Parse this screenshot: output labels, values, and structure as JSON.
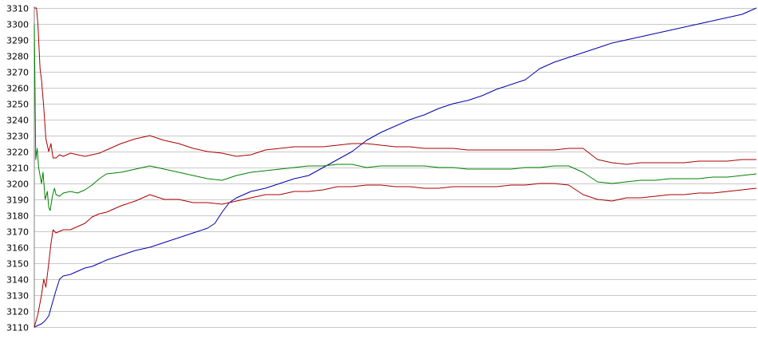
{
  "chart_data": {
    "type": "line",
    "title": "",
    "xlabel": "",
    "ylabel": "",
    "ylim": [
      3110,
      3310
    ],
    "xlim": [
      0,
      100
    ],
    "grid": true,
    "legend": "none",
    "y_ticks": [
      "3310",
      "3300",
      "3290",
      "3280",
      "3270",
      "3260",
      "3250",
      "3240",
      "3230",
      "3220",
      "3210",
      "3200",
      "3190",
      "3180",
      "3170",
      "3160",
      "3150",
      "3140",
      "3130",
      "3120",
      "3110"
    ],
    "series": [
      {
        "color": "#0000aa",
        "x": [
          0,
          0.5,
          1,
          1.5,
          2,
          2.5,
          3,
          3.5,
          4,
          5,
          6,
          7,
          8,
          9,
          10,
          12,
          14,
          16,
          18,
          20,
          22,
          24,
          25,
          26,
          27,
          28,
          29,
          30,
          32,
          34,
          36,
          38,
          40,
          42,
          44,
          46,
          48,
          50,
          52,
          54,
          56,
          58,
          60,
          62,
          64,
          66,
          68,
          70,
          72,
          74,
          76,
          78,
          80,
          82,
          84,
          86,
          88,
          90,
          92,
          94,
          96,
          98,
          99,
          100
        ],
        "y": [
          3110,
          3111,
          3112,
          3114,
          3117,
          3125,
          3133,
          3140,
          3142,
          3143,
          3145,
          3147,
          3148,
          3150,
          3152,
          3155,
          3158,
          3160,
          3163,
          3166,
          3169,
          3172,
          3175,
          3182,
          3188,
          3191,
          3193,
          3195,
          3197,
          3200,
          3203,
          3205,
          3210,
          3215,
          3220,
          3227,
          3232,
          3236,
          3240,
          3243,
          3247,
          3250,
          3252,
          3255,
          3259,
          3262,
          3265,
          3272,
          3276,
          3279,
          3282,
          3285,
          3288,
          3290,
          3292,
          3294,
          3296,
          3298,
          3300,
          3302,
          3304,
          3306,
          3308,
          3310
        ]
      },
      {
        "color": "#008000",
        "x": [
          0,
          0.2,
          0.4,
          0.6,
          0.8,
          1,
          1.2,
          1.5,
          1.8,
          2,
          2.2,
          2.5,
          2.8,
          3,
          3.5,
          4,
          5,
          6,
          7,
          8,
          9,
          10,
          12,
          14,
          16,
          18,
          20,
          22,
          24,
          26,
          28,
          30,
          32,
          34,
          36,
          38,
          40,
          42,
          44,
          46,
          48,
          50,
          52,
          54,
          56,
          58,
          60,
          62,
          64,
          66,
          68,
          70,
          72,
          74,
          76,
          78,
          80,
          82,
          84,
          86,
          88,
          90,
          92,
          94,
          96,
          98,
          100
        ],
        "y": [
          3300,
          3215,
          3222,
          3210,
          3205,
          3200,
          3207,
          3190,
          3195,
          3185,
          3183,
          3192,
          3197,
          3193,
          3192,
          3194,
          3195,
          3194,
          3196,
          3199,
          3203,
          3206,
          3207,
          3209,
          3211,
          3209,
          3207,
          3205,
          3203,
          3202,
          3205,
          3207,
          3208,
          3209,
          3210,
          3211,
          3211,
          3212,
          3212,
          3210,
          3211,
          3211,
          3211,
          3211,
          3210,
          3210,
          3209,
          3209,
          3209,
          3209,
          3210,
          3210,
          3211,
          3211,
          3207,
          3201,
          3200,
          3201,
          3202,
          3202,
          3203,
          3203,
          3203,
          3204,
          3204,
          3205,
          3206
        ]
      },
      {
        "color": "#aa0000",
        "x": [
          0,
          0.3,
          0.5,
          0.8,
          1,
          1.3,
          1.6,
          2,
          2.3,
          2.6,
          3,
          3.5,
          4,
          5,
          6,
          7,
          8,
          9,
          10,
          12,
          14,
          16,
          18,
          20,
          22,
          24,
          26,
          28,
          30,
          32,
          34,
          36,
          38,
          40,
          42,
          44,
          46,
          48,
          50,
          52,
          54,
          56,
          58,
          60,
          62,
          64,
          66,
          68,
          70,
          72,
          74,
          76,
          78,
          80,
          82,
          84,
          86,
          88,
          90,
          92,
          94,
          96,
          98,
          100
        ],
        "y": [
          3310,
          3310,
          3300,
          3272,
          3265,
          3248,
          3228,
          3220,
          3225,
          3216,
          3216,
          3218,
          3217,
          3219,
          3218,
          3217,
          3218,
          3219,
          3221,
          3225,
          3228,
          3230,
          3227,
          3225,
          3222,
          3220,
          3219,
          3217,
          3218,
          3221,
          3222,
          3223,
          3223,
          3223,
          3224,
          3225,
          3225,
          3224,
          3223,
          3223,
          3222,
          3222,
          3222,
          3221,
          3221,
          3221,
          3221,
          3221,
          3221,
          3221,
          3222,
          3222,
          3215,
          3213,
          3212,
          3213,
          3213,
          3213,
          3213,
          3214,
          3214,
          3214,
          3215,
          3215
        ]
      },
      {
        "color": "#aa0000",
        "x": [
          0,
          0.5,
          1,
          1.3,
          1.6,
          2,
          2.3,
          2.6,
          3,
          3.5,
          4,
          5,
          6,
          7,
          8,
          9,
          10,
          12,
          14,
          16,
          18,
          20,
          22,
          24,
          26,
          28,
          30,
          32,
          34,
          36,
          38,
          40,
          42,
          44,
          46,
          48,
          50,
          52,
          54,
          56,
          58,
          60,
          62,
          64,
          66,
          68,
          70,
          72,
          74,
          76,
          78,
          80,
          82,
          84,
          86,
          88,
          90,
          92,
          94,
          96,
          98,
          100
        ],
        "y": [
          3110,
          3118,
          3130,
          3140,
          3135,
          3150,
          3162,
          3171,
          3169,
          3170,
          3171,
          3171,
          3173,
          3175,
          3179,
          3181,
          3182,
          3186,
          3189,
          3193,
          3190,
          3190,
          3188,
          3188,
          3187,
          3189,
          3191,
          3193,
          3193,
          3195,
          3195,
          3196,
          3198,
          3198,
          3199,
          3199,
          3198,
          3198,
          3197,
          3197,
          3198,
          3198,
          3198,
          3198,
          3199,
          3199,
          3200,
          3200,
          3199,
          3193,
          3190,
          3189,
          3191,
          3191,
          3192,
          3193,
          3193,
          3194,
          3194,
          3195,
          3196,
          3197
        ]
      }
    ]
  }
}
